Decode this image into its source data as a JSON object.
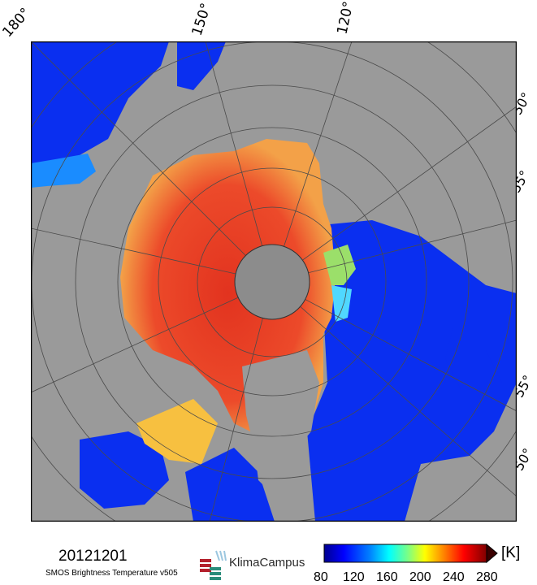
{
  "map": {
    "date": "20121201",
    "subtitle": "SMOS Brightness Temperature v505",
    "logo_text": "KlimaCampus",
    "longitude_labels": [
      "180°",
      "150°",
      "120°"
    ],
    "latitude_labels_right": [
      "50°",
      "55°",
      "55°",
      "50°"
    ],
    "colors": {
      "land": "#9a9a9a",
      "ocean": "#0a2ff0",
      "ice": "#e8442a",
      "pole": "#8c8c8c"
    }
  },
  "legend": {
    "unit": "[K]",
    "ticks": [
      "80",
      "120",
      "160",
      "200",
      "240",
      "280"
    ],
    "range": [
      80,
      280
    ],
    "colormap": [
      "#00008f",
      "#0000ff",
      "#0080ff",
      "#00ffff",
      "#80ff80",
      "#ffff00",
      "#ff8000",
      "#ff0000",
      "#800000"
    ]
  }
}
